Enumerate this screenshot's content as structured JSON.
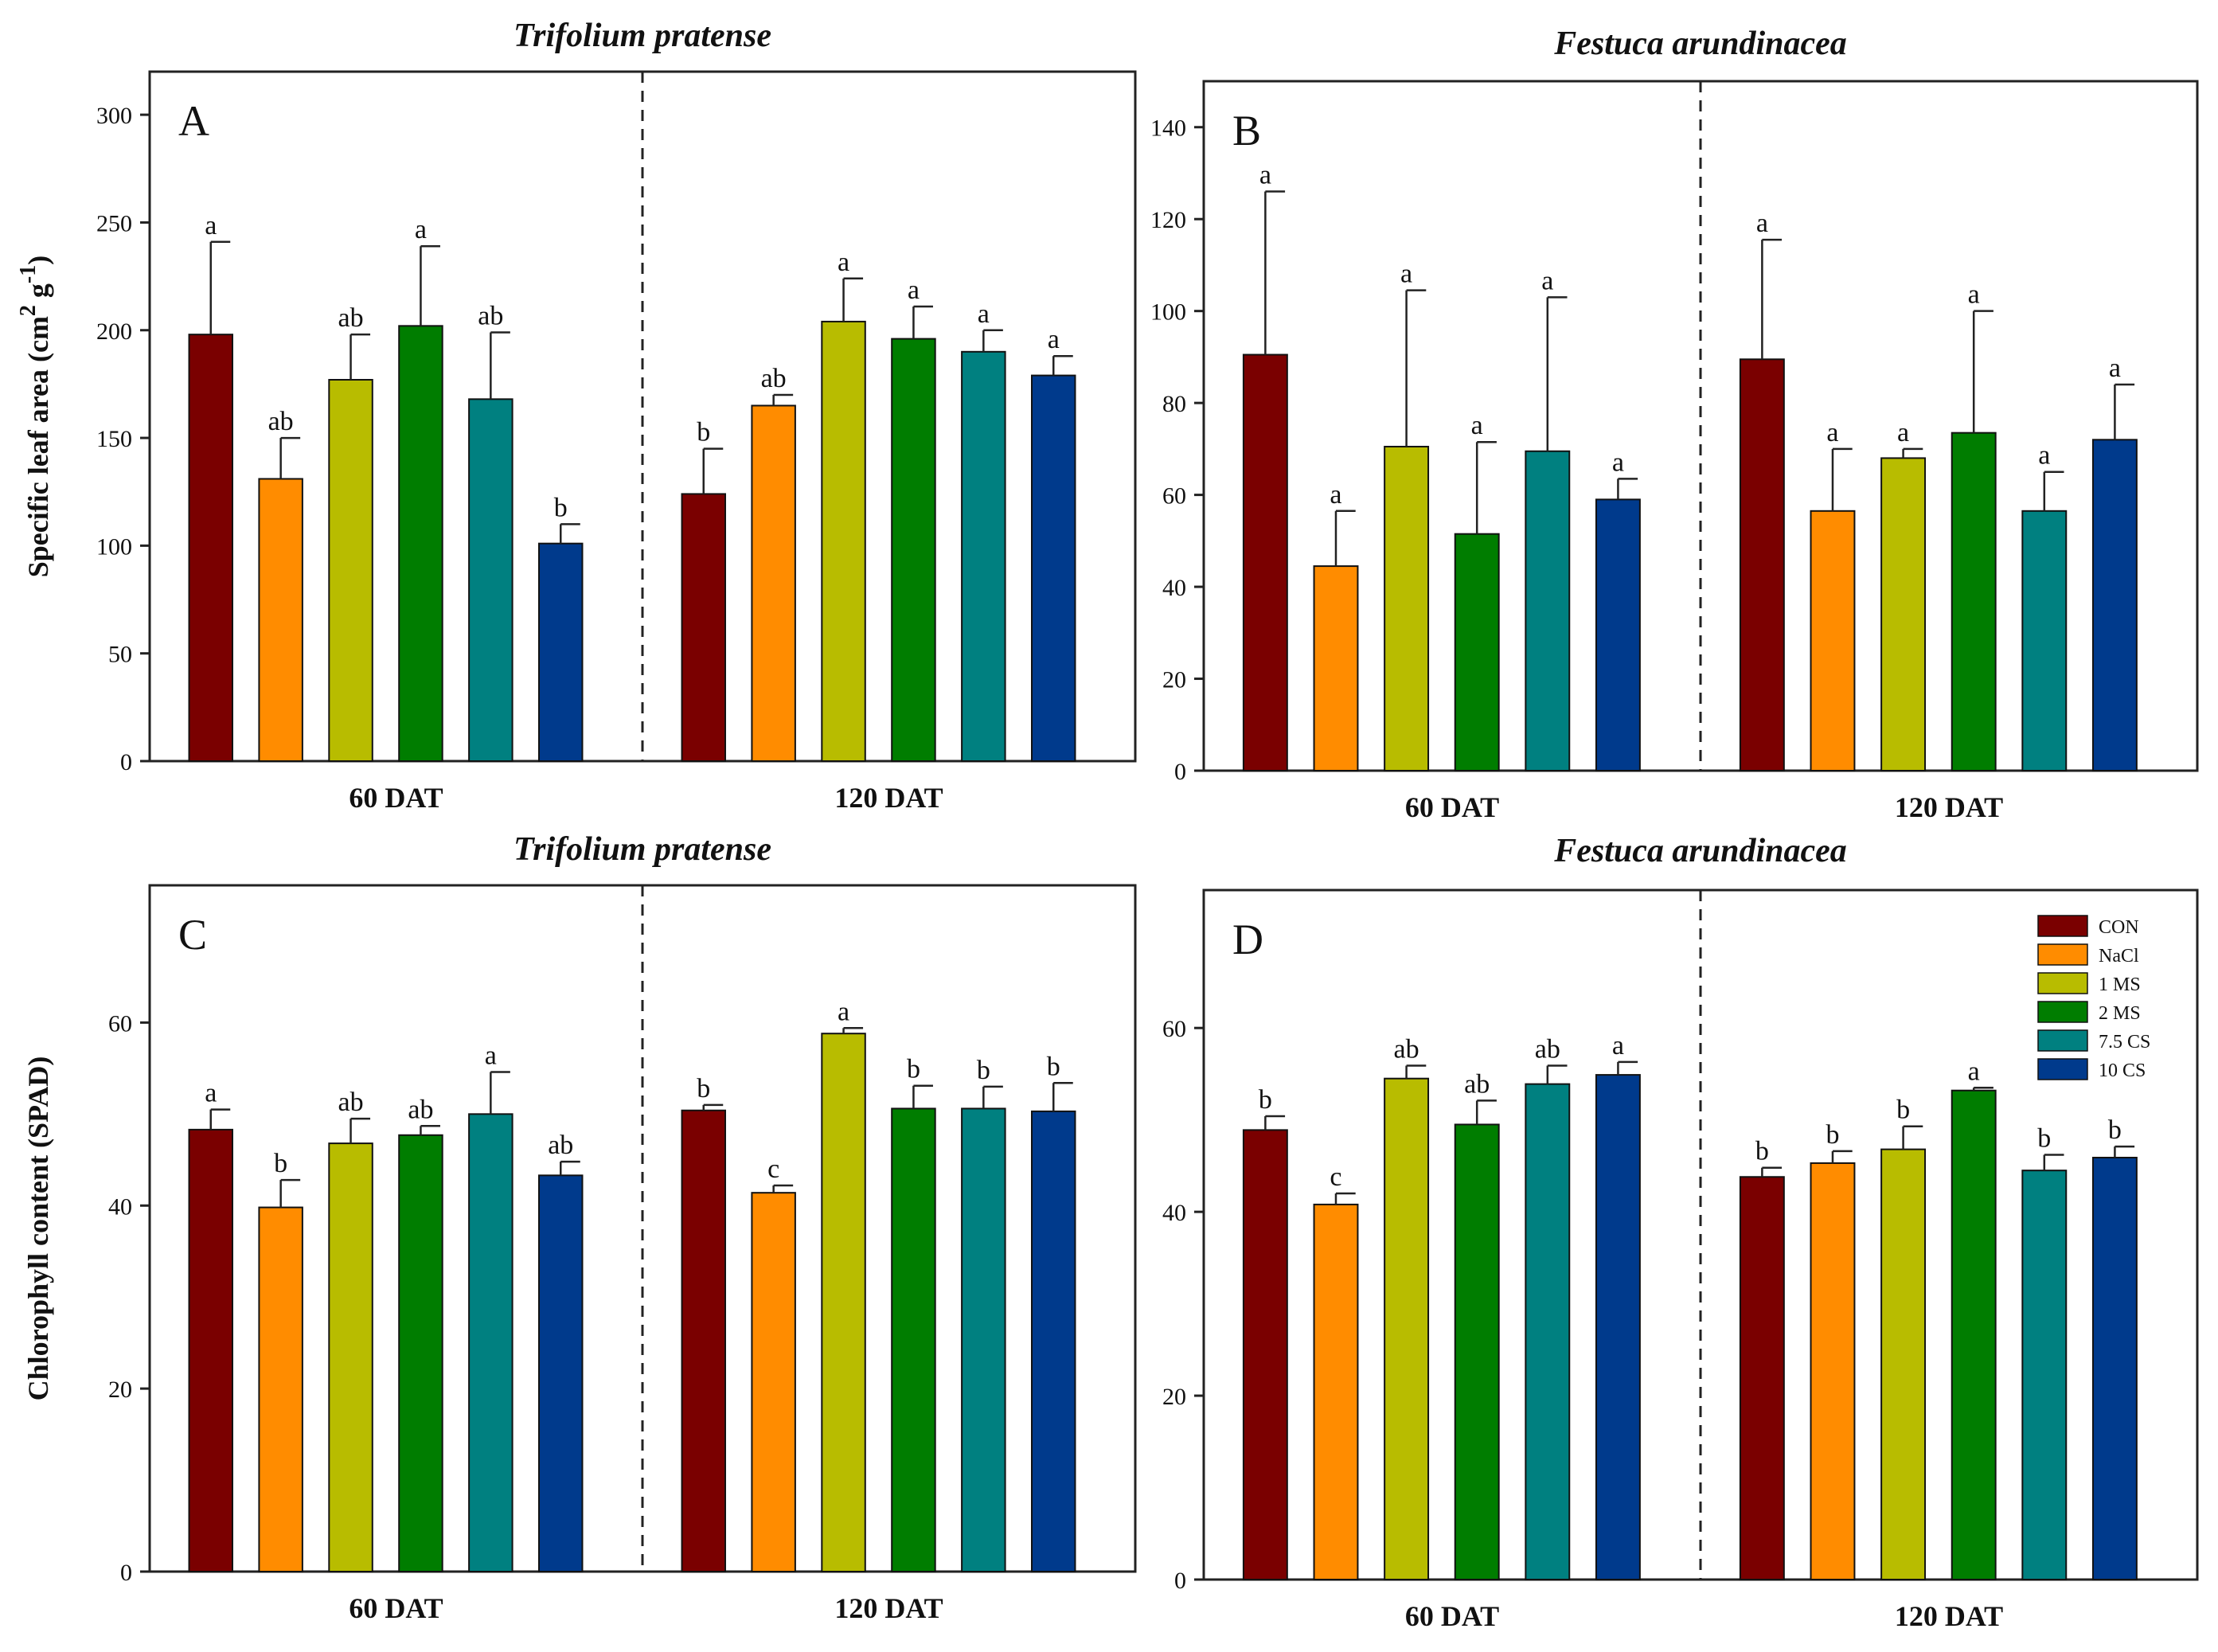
{
  "figure": {
    "treatments": [
      "CON",
      "NaCl",
      "1 MS",
      "2 MS",
      "7.5 CS",
      "10 CS"
    ],
    "colors": [
      "#7a0000",
      "#ff8c00",
      "#b8bc00",
      "#007d00",
      "#008080",
      "#003a8c"
    ],
    "groups": [
      "60 DAT",
      "120 DAT"
    ]
  },
  "chart_data": [
    {
      "panel": "A",
      "type": "bar",
      "title": "Trifolium pratense",
      "ylabel": "Specific leaf area (cm",
      "ylabel_sup1": "2",
      "ylabel_mid": " g",
      "ylabel_sup2": "-1",
      "ylabel_end": ")",
      "ylim": [
        0,
        320
      ],
      "yticks": [
        0,
        50,
        100,
        150,
        200,
        250,
        300
      ],
      "categories": [
        "60 DAT",
        "120 DAT"
      ],
      "series": [
        {
          "name": "CON",
          "values": [
            198,
            124
          ],
          "errors": [
            43,
            21
          ],
          "letters": [
            "a",
            "b"
          ]
        },
        {
          "name": "NaCl",
          "values": [
            131,
            165
          ],
          "errors": [
            19,
            5
          ],
          "letters": [
            "ab",
            "ab"
          ]
        },
        {
          "name": "1 MS",
          "values": [
            177,
            204
          ],
          "errors": [
            21,
            20
          ],
          "letters": [
            "ab",
            "a"
          ]
        },
        {
          "name": "2 MS",
          "values": [
            202,
            196
          ],
          "errors": [
            37,
            15
          ],
          "letters": [
            "a",
            "a"
          ]
        },
        {
          "name": "7.5 CS",
          "values": [
            168,
            190
          ],
          "errors": [
            31,
            10
          ],
          "letters": [
            "ab",
            "a"
          ]
        },
        {
          "name": "10 CS",
          "values": [
            101,
            179
          ],
          "errors": [
            9,
            9
          ],
          "letters": [
            "b",
            "a"
          ]
        }
      ]
    },
    {
      "panel": "B",
      "type": "bar",
      "title": "Festuca arundinacea",
      "ylabel": "",
      "ylim": [
        0,
        150
      ],
      "yticks": [
        0,
        20,
        40,
        60,
        80,
        100,
        120,
        140
      ],
      "categories": [
        "60 DAT",
        "120 DAT"
      ],
      "series": [
        {
          "name": "CON",
          "values": [
            90.5,
            89.5
          ],
          "errors": [
            35.5,
            26
          ],
          "letters": [
            "a",
            "a"
          ]
        },
        {
          "name": "NaCl",
          "values": [
            44.5,
            56.5
          ],
          "errors": [
            12,
            13.5
          ],
          "letters": [
            "a",
            "a"
          ]
        },
        {
          "name": "1 MS",
          "values": [
            70.5,
            68
          ],
          "errors": [
            34,
            2
          ],
          "letters": [
            "a",
            "a"
          ]
        },
        {
          "name": "2 MS",
          "values": [
            51.5,
            73.5
          ],
          "errors": [
            20,
            26.5
          ],
          "letters": [
            "a",
            "a"
          ]
        },
        {
          "name": "7.5 CS",
          "values": [
            69.5,
            56.5
          ],
          "errors": [
            33.5,
            8.5
          ],
          "letters": [
            "a",
            "a"
          ]
        },
        {
          "name": "10 CS",
          "values": [
            59,
            72
          ],
          "errors": [
            4.5,
            12
          ],
          "letters": [
            "a",
            "a"
          ]
        }
      ]
    },
    {
      "panel": "C",
      "type": "bar",
      "title": "Trifolium pratense",
      "ylabel": "Chlorophyll content (SPAD)",
      "ylim": [
        0,
        75
      ],
      "yticks": [
        0,
        20,
        40,
        60
      ],
      "categories": [
        "60 DAT",
        "120 DAT"
      ],
      "series": [
        {
          "name": "CON",
          "values": [
            48.3,
            50.4
          ],
          "errors": [
            2.2,
            0.6
          ],
          "letters": [
            "a",
            "b"
          ]
        },
        {
          "name": "NaCl",
          "values": [
            39.8,
            41.4
          ],
          "errors": [
            3.0,
            0.8
          ],
          "letters": [
            "b",
            "c"
          ]
        },
        {
          "name": "1 MS",
          "values": [
            46.8,
            58.8
          ],
          "errors": [
            2.7,
            0.6
          ],
          "letters": [
            "ab",
            "a"
          ]
        },
        {
          "name": "2 MS",
          "values": [
            47.7,
            50.6
          ],
          "errors": [
            1.0,
            2.5
          ],
          "letters": [
            "ab",
            "b"
          ]
        },
        {
          "name": "7.5 CS",
          "values": [
            50.0,
            50.6
          ],
          "errors": [
            4.6,
            2.4
          ],
          "letters": [
            "a",
            "b"
          ]
        },
        {
          "name": "10 CS",
          "values": [
            43.3,
            50.3
          ],
          "errors": [
            1.5,
            3.1
          ],
          "letters": [
            "ab",
            "b"
          ]
        }
      ]
    },
    {
      "panel": "D",
      "type": "bar",
      "title": "Festuca arundinacea",
      "ylabel": "",
      "ylim": [
        0,
        75
      ],
      "yticks": [
        0,
        20,
        40,
        60
      ],
      "categories": [
        "60 DAT",
        "120 DAT"
      ],
      "legend_position": "top-right",
      "series": [
        {
          "name": "CON",
          "values": [
            48.9,
            43.8
          ],
          "errors": [
            1.5,
            1.0
          ],
          "letters": [
            "b",
            "b"
          ]
        },
        {
          "name": "NaCl",
          "values": [
            40.8,
            45.3
          ],
          "errors": [
            1.2,
            1.3
          ],
          "letters": [
            "c",
            "b"
          ]
        },
        {
          "name": "1 MS",
          "values": [
            54.5,
            46.8
          ],
          "errors": [
            1.4,
            2.5
          ],
          "letters": [
            "ab",
            "b"
          ]
        },
        {
          "name": "2 MS",
          "values": [
            49.5,
            53.2
          ],
          "errors": [
            2.6,
            0.3
          ],
          "letters": [
            "ab",
            "a"
          ]
        },
        {
          "name": "7.5 CS",
          "values": [
            53.9,
            44.5
          ],
          "errors": [
            2.0,
            1.7
          ],
          "letters": [
            "ab",
            "b"
          ]
        },
        {
          "name": "10 CS",
          "values": [
            54.9,
            45.9
          ],
          "errors": [
            1.4,
            1.2
          ],
          "letters": [
            "a",
            "b"
          ]
        }
      ]
    }
  ]
}
